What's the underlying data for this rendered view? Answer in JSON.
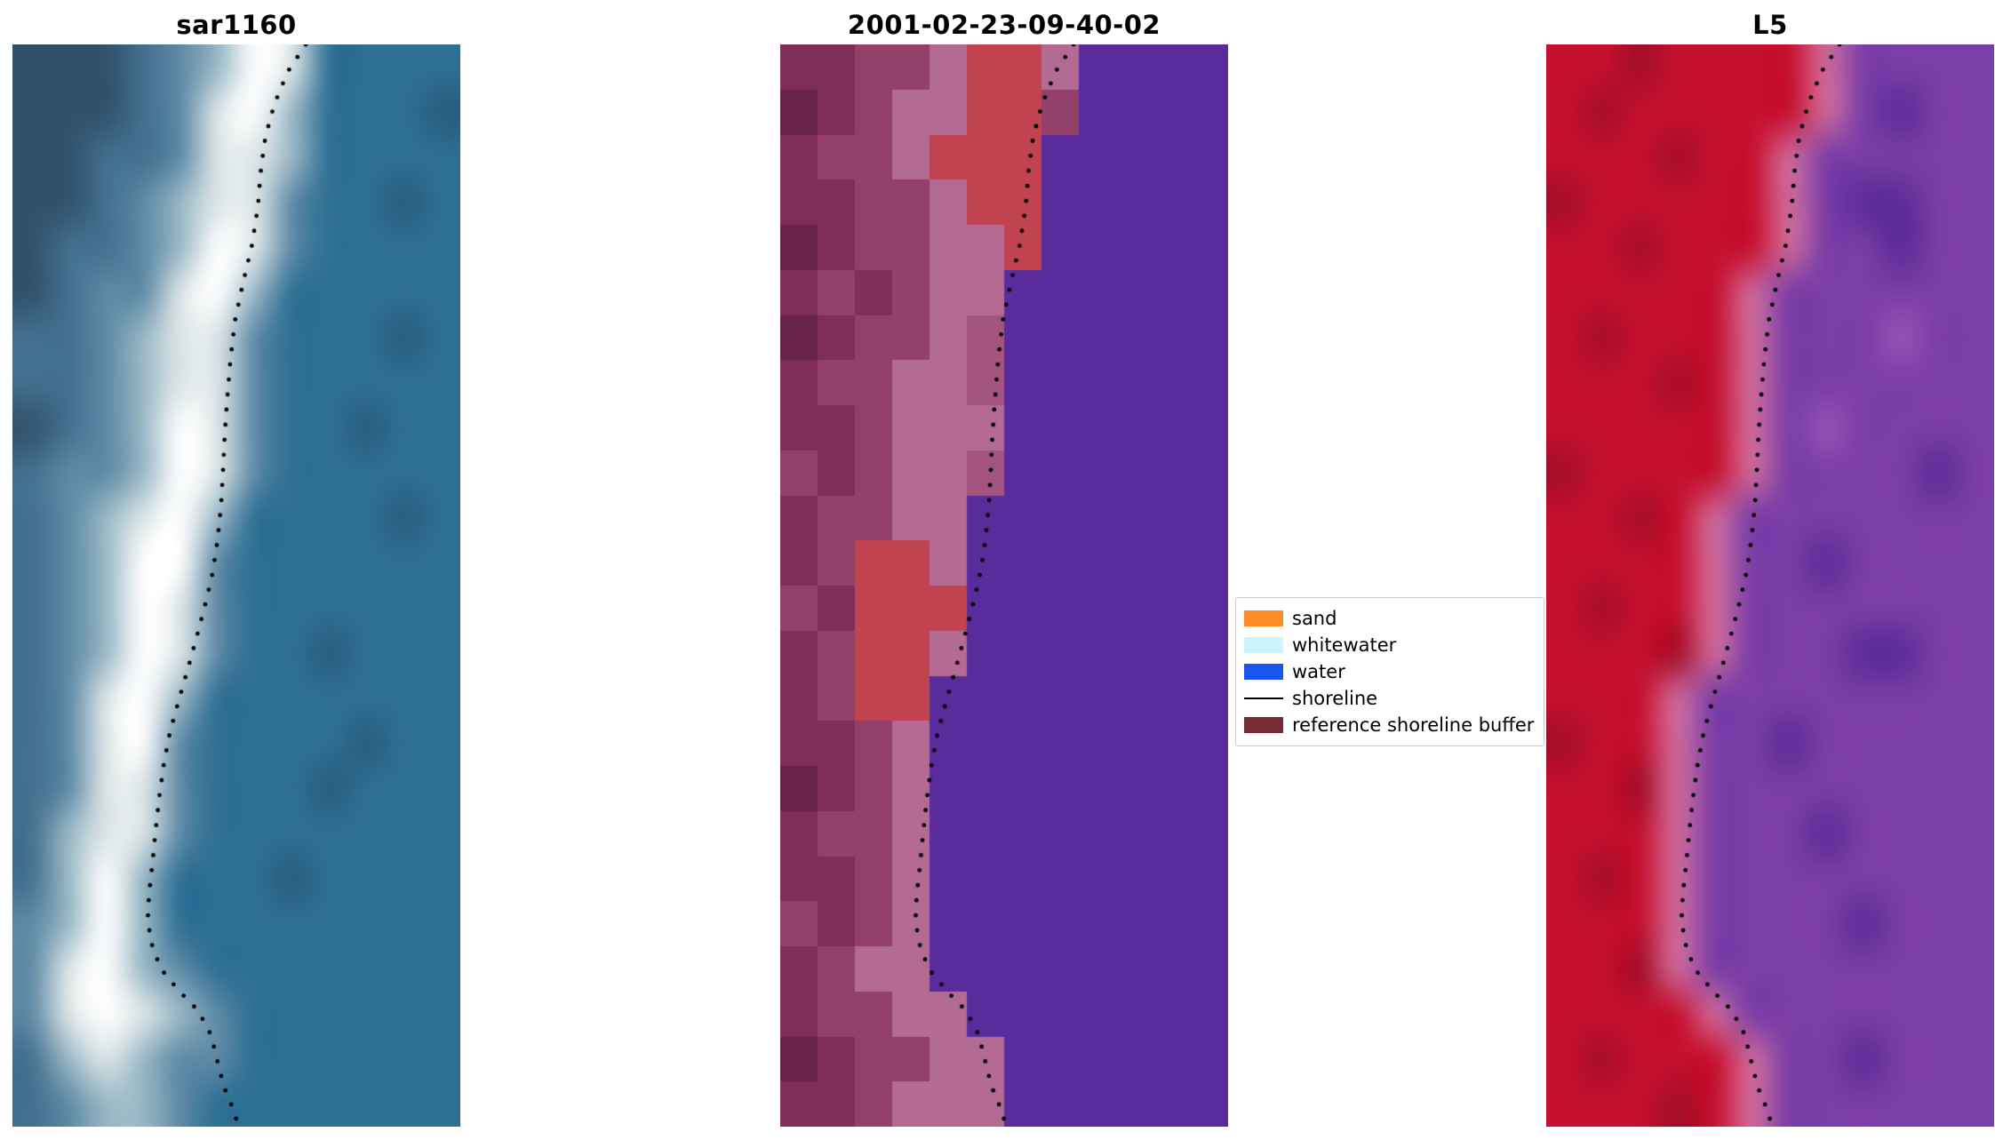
{
  "figure": {
    "background": "#ffffff"
  },
  "chart_data": {
    "type": "image",
    "panels": [
      {
        "title": "sar1160",
        "kind": "satellite-image",
        "smooth": true,
        "palette": {
          "0": "#30516c",
          "1": "#44708f",
          "2": "#5e8aa6",
          "3": "#9ab8c6",
          "4": "#dde6e8",
          "5": "#ffffff",
          "6": "#2e6f94",
          "7": "#275d7e"
        },
        "grid": [
          "000123546666",
          "000124536667",
          "001124436666",
          "001234426676",
          "011235426666",
          "012245366666",
          "112344266676",
          "112344266666",
          "012354266766",
          "122354266666",
          "123453666676",
          "123552666666",
          "123542666666",
          "123542667666",
          "124536666666",
          "124526666766",
          "124426667666",
          "134426666666",
          "135366676666",
          "235366666666",
          "245326666666",
          "245432666666",
          "134322666666",
          "123326666666"
        ]
      },
      {
        "title": "2001-02-23-09-40-02",
        "kind": "classification-image",
        "smooth": false,
        "palette": {
          "a": "#5a2b9d",
          "b": "#7e2e58",
          "c": "#93406b",
          "d": "#b36b94",
          "e": "#c24350",
          "g": "#672348",
          "h": "#a35580"
        },
        "grid": [
          "bbccdeedaaaa",
          "gbcddeecaaaa",
          "bccdeeeaaaaa",
          "bbccdeeaaaaa",
          "gbccddeaaaaa",
          "bcbcddaaaaaa",
          "gbccdhaaaaaa",
          "bccddhaaaaaa",
          "bbcdddaaaaaa",
          "cbcddhaaaaaa",
          "bccddaaaaaaa",
          "bceedaaaaaaa",
          "cbeeeaaaaaaa",
          "bceedaaaaaaa",
          "bceeaaaaaaaa",
          "bbcdaaaaaaaa",
          "gbcdaaaaaaaa",
          "bccdaaaaaaaa",
          "bbcdaaaaaaaa",
          "cbcdaaaaaaaa",
          "bcddaaaaaaaa",
          "bccddaaaaaaa",
          "gbccddaaaaaa",
          "bbcdddaaaaaa"
        ]
      },
      {
        "title": "L5",
        "kind": "satellite-image",
        "smooth": true,
        "palette": {
          "p": "#c5102f",
          "s": "#a30d27",
          "r": "#cf6a9a",
          "q": "#7b3da6",
          "u": "#5c2b94",
          "t": "#9455b8"
        },
        "grid": [
          "ppspppprqqqq",
          "psppppprquqq",
          "pppspprqqqqq",
          "sppppprquuqq",
          "ppsppprqquqq",
          "ppppprqqqqqq",
          "psppprqqqtqq",
          "pppsprqqqqqq",
          "ppppprqtqqqq",
          "spppprqqqquq",
          "ppsprqqqqqqq",
          "pppprqquqqqq",
          "pspprqqqqqqq",
          "pppsrqqquuqq",
          "ppprqqqqqqqq",
          "spprqquqqqqq",
          "ppsrqqqqqqqq",
          "ppprqqquqqqq",
          "psprqqqqqqqq",
          "ppprqqqquqqq",
          "ppsrqqqqqqqq",
          "pppprqqqqqqq",
          "psppprqquqqq",
          "pppsprqqqqqq"
        ]
      }
    ],
    "shoreline": {
      "color": "#000000",
      "style": "dotted",
      "points": [
        [
          0.655,
          0.0
        ],
        [
          0.615,
          0.025
        ],
        [
          0.585,
          0.055
        ],
        [
          0.565,
          0.085
        ],
        [
          0.555,
          0.115
        ],
        [
          0.548,
          0.15
        ],
        [
          0.535,
          0.185
        ],
        [
          0.515,
          0.22
        ],
        [
          0.497,
          0.255
        ],
        [
          0.487,
          0.29
        ],
        [
          0.48,
          0.325
        ],
        [
          0.474,
          0.36
        ],
        [
          0.47,
          0.395
        ],
        [
          0.466,
          0.425
        ],
        [
          0.458,
          0.458
        ],
        [
          0.447,
          0.488
        ],
        [
          0.432,
          0.515
        ],
        [
          0.413,
          0.545
        ],
        [
          0.393,
          0.575
        ],
        [
          0.372,
          0.605
        ],
        [
          0.352,
          0.635
        ],
        [
          0.338,
          0.665
        ],
        [
          0.328,
          0.695
        ],
        [
          0.32,
          0.725
        ],
        [
          0.313,
          0.755
        ],
        [
          0.305,
          0.785
        ],
        [
          0.302,
          0.81
        ],
        [
          0.313,
          0.835
        ],
        [
          0.333,
          0.855
        ],
        [
          0.373,
          0.875
        ],
        [
          0.415,
          0.893
        ],
        [
          0.443,
          0.915
        ],
        [
          0.458,
          0.94
        ],
        [
          0.472,
          0.963
        ],
        [
          0.492,
          0.983
        ],
        [
          0.505,
          1.0
        ]
      ]
    },
    "legend": {
      "items": [
        {
          "label": "sand",
          "swatch": "patch",
          "color": "#ff8c26"
        },
        {
          "label": "whitewater",
          "swatch": "patch",
          "color": "#ccf6ff"
        },
        {
          "label": "water",
          "swatch": "patch",
          "color": "#1b55f0"
        },
        {
          "label": "shoreline",
          "swatch": "line",
          "color": "#000000"
        },
        {
          "label": "reference shoreline buffer",
          "swatch": "patch",
          "color": "#772b35"
        }
      ]
    }
  }
}
